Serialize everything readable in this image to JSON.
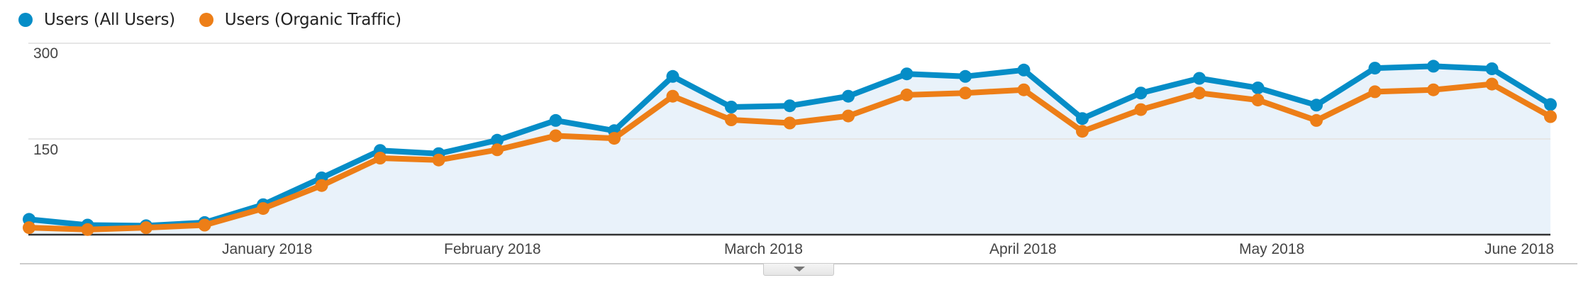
{
  "legend": [
    {
      "label": "Users (All Users)",
      "color": "#058dc7"
    },
    {
      "label": "Users (Organic Traffic)",
      "color": "#ed7e17"
    }
  ],
  "y_axis": {
    "labels": [
      "300",
      "150"
    ]
  },
  "x_axis": {
    "labels": [
      "January 2018",
      "February 2018",
      "March 2018",
      "April 2018",
      "May 2018",
      "June 2018"
    ]
  },
  "colors": {
    "all_users": "#058dc7",
    "organic": "#ed7e17",
    "area_fill": "#e9f2fa",
    "grid": "#e6e6e6",
    "baseline": "#333333"
  },
  "chart_data": {
    "type": "line",
    "title": "",
    "xlabel": "",
    "ylabel": "",
    "ylim": [
      0,
      300
    ],
    "yticks": [
      0,
      150,
      300
    ],
    "grid": true,
    "legend_position": "top-left",
    "granularity": "weekly",
    "x_tick_labels": [
      "January 2018",
      "February 2018",
      "March 2018",
      "April 2018",
      "May 2018",
      "June 2018"
    ],
    "x": [
      0,
      1,
      2,
      3,
      4,
      5,
      6,
      7,
      8,
      9,
      10,
      11,
      12,
      13,
      14,
      15,
      16,
      17,
      18,
      19,
      20,
      21,
      22,
      23,
      24,
      25,
      26
    ],
    "series": [
      {
        "name": "Users (All Users)",
        "color": "#058dc7",
        "area": true,
        "values": [
          24,
          15,
          14,
          19,
          47,
          89,
          132,
          127,
          148,
          179,
          163,
          248,
          200,
          202,
          217,
          252,
          248,
          258,
          182,
          222,
          245,
          230,
          203,
          261,
          264,
          260,
          204
        ]
      },
      {
        "name": "Users (Organic Traffic)",
        "color": "#ed7e17",
        "area": false,
        "values": [
          11,
          8,
          11,
          15,
          41,
          77,
          120,
          117,
          133,
          155,
          151,
          217,
          180,
          175,
          186,
          219,
          222,
          227,
          162,
          196,
          222,
          211,
          179,
          224,
          227,
          236,
          185
        ]
      }
    ]
  }
}
